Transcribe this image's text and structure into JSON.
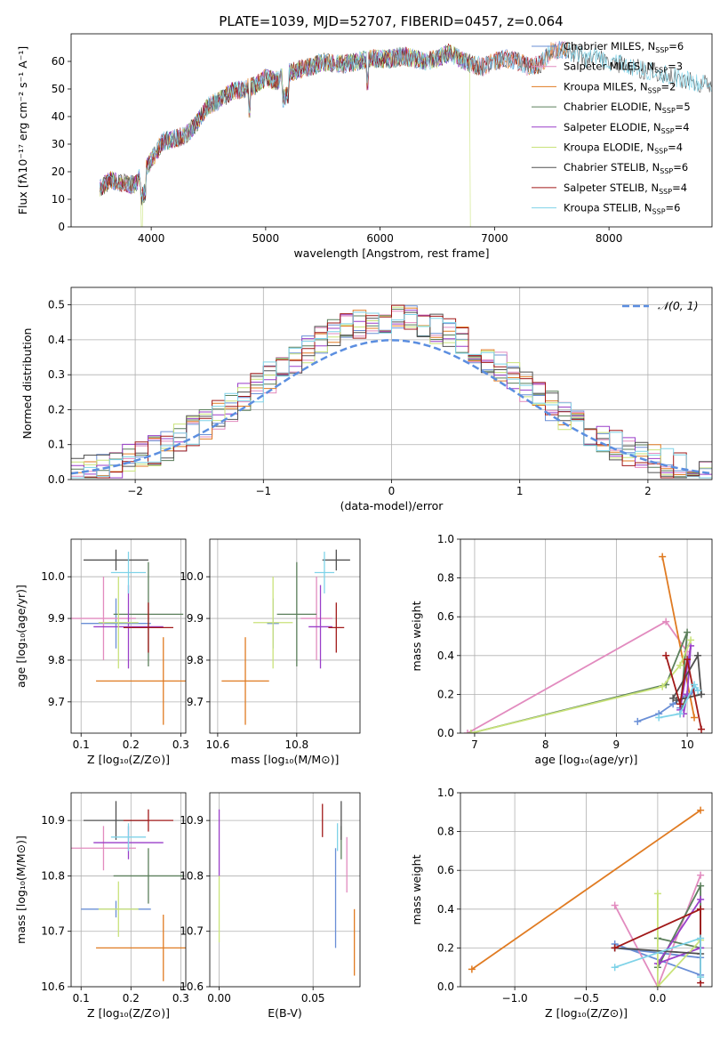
{
  "figure": {
    "title": "PLATE=1039, MJD=52707, FIBERID=0457, z=0.064"
  },
  "colors": {
    "chabrier_miles": "#6a8fd6",
    "salpeter_miles": "#e28bbf",
    "kroupa_miles": "#e07b22",
    "chabrier_elodie": "#5b7f5b",
    "salpeter_elodie": "#9a3fc9",
    "kroupa_elodie": "#c9e37a",
    "chabrier_stelib": "#505050",
    "salpeter_stelib": "#a11919",
    "kroupa_stelib": "#7fd3e8",
    "gauss": "#5b8ee0"
  },
  "chart_data": [
    {
      "id": "spectrum",
      "type": "line",
      "xlabel": "wavelength [Angstrom, rest frame]",
      "ylabel": "Flux [fλ10⁻¹⁷ erg cm⁻² s⁻¹ A⁻¹]",
      "xlim": [
        3300,
        8900
      ],
      "ylim": [
        0,
        70
      ],
      "xticks": [
        "4000",
        "5000",
        "6000",
        "7000",
        "8000"
      ],
      "yticks": [
        "0",
        "10",
        "20",
        "30",
        "40",
        "50",
        "60"
      ],
      "legend": "top-right",
      "continuum": {
        "x": [
          3550,
          3650,
          3750,
          3850,
          3950,
          4000,
          4100,
          4200,
          4300,
          4400,
          4500,
          4600,
          4700,
          4800,
          4900,
          5000,
          5100,
          5200,
          5300,
          5400,
          5500,
          5600,
          5700,
          5800,
          5900,
          6000,
          6100,
          6200,
          6300,
          6400,
          6500,
          6600,
          6700,
          6800,
          6900,
          7000,
          7100,
          7200,
          7300,
          7400,
          7500,
          7600,
          7700,
          7800,
          7900,
          8000,
          8100,
          8200,
          8300,
          8400,
          8500,
          8600,
          8700,
          8800
        ],
        "y": [
          14,
          17,
          16,
          15,
          21,
          24,
          31,
          32,
          33,
          38,
          44,
          46,
          49,
          50,
          51,
          54,
          53,
          56,
          57,
          58,
          60,
          59,
          59,
          60,
          61,
          61,
          61,
          62,
          61,
          60,
          61,
          63,
          61,
          59,
          58,
          60,
          61,
          60,
          58,
          59,
          64,
          64,
          63,
          61,
          62,
          60,
          59,
          58,
          57,
          56,
          55,
          54,
          53,
          52
        ]
      },
      "series": [
        {
          "name": "Chabrier MILES, N_SSP=6",
          "color_key": "chabrier_miles",
          "end": 7640,
          "drop": null
        },
        {
          "name": "Salpeter MILES, N_SSP=3",
          "color_key": "salpeter_miles",
          "end": 7640,
          "drop": null
        },
        {
          "name": "Kroupa MILES, N_SSP=2",
          "color_key": "kroupa_miles",
          "end": 7640,
          "drop": null
        },
        {
          "name": "Chabrier ELODIE, N_SSP=5",
          "color_key": "chabrier_elodie",
          "end": 6800,
          "drop": null
        },
        {
          "name": "Salpeter ELODIE, N_SSP=4",
          "color_key": "salpeter_elodie",
          "end": 6800,
          "drop": null
        },
        {
          "name": "Kroupa ELODIE, N_SSP=4",
          "color_key": "kroupa_elodie",
          "end": 6790,
          "drop": [
            3920,
            6790
          ]
        },
        {
          "name": "Chabrier STELIB, N_SSP=6",
          "color_key": "chabrier_stelib",
          "end": 8900,
          "drop": null
        },
        {
          "name": "Salpeter STELIB, N_SSP=4",
          "color_key": "salpeter_stelib",
          "end": 7420,
          "drop": [
            7420
          ]
        },
        {
          "name": "Kroupa STELIB, N_SSP=6",
          "color_key": "kroupa_stelib",
          "end": 8900,
          "drop": null
        }
      ],
      "legend_entries": [
        {
          "base": "Chabrier MILES, N",
          "sub": "SSP",
          "tail": "=6",
          "color_key": "chabrier_miles"
        },
        {
          "base": "Salpeter MILES, N",
          "sub": "SSP",
          "tail": "=3",
          "color_key": "salpeter_miles"
        },
        {
          "base": "Kroupa MILES, N",
          "sub": "SSP",
          "tail": "=2",
          "color_key": "kroupa_miles"
        },
        {
          "base": "Chabrier ELODIE, N",
          "sub": "SSP",
          "tail": "=5",
          "color_key": "chabrier_elodie"
        },
        {
          "base": "Salpeter ELODIE, N",
          "sub": "SSP",
          "tail": "=4",
          "color_key": "salpeter_elodie"
        },
        {
          "base": "Kroupa ELODIE, N",
          "sub": "SSP",
          "tail": "=4",
          "color_key": "kroupa_elodie"
        },
        {
          "base": "Chabrier STELIB, N",
          "sub": "SSP",
          "tail": "=6",
          "color_key": "chabrier_stelib"
        },
        {
          "base": "Salpeter STELIB, N",
          "sub": "SSP",
          "tail": "=4",
          "color_key": "salpeter_stelib"
        },
        {
          "base": "Kroupa STELIB, N",
          "sub": "SSP",
          "tail": "=6",
          "color_key": "kroupa_stelib"
        }
      ]
    },
    {
      "id": "residuals",
      "type": "line",
      "xlabel": "(data-model)/error",
      "ylabel": "Normed distribution",
      "xlim": [
        -2.5,
        2.5
      ],
      "ylim": [
        0,
        0.55
      ],
      "xticks": [
        "−2",
        "−1",
        "0",
        "1",
        "2"
      ],
      "yticks": [
        "0.0",
        "0.1",
        "0.2",
        "0.3",
        "0.4",
        "0.5"
      ],
      "grid": true,
      "legend": "top-right",
      "gauss_label": "𝒩(0, 1)",
      "bins": 50,
      "series_color_keys": [
        "chabrier_miles",
        "salpeter_miles",
        "kroupa_miles",
        "chabrier_elodie",
        "salpeter_elodie",
        "kroupa_elodie",
        "chabrier_stelib",
        "salpeter_stelib",
        "kroupa_stelib"
      ]
    },
    {
      "id": "age-vs-Z",
      "type": "scatter",
      "xlabel": "Z [log₁₀(Z/Z⊙)]",
      "ylabel": "age  [log₁₀(age/yr)]",
      "xlim": [
        0.08,
        0.31
      ],
      "ylim": [
        9.625,
        10.09
      ],
      "xticks": [
        "0.1",
        "0.2",
        "0.3"
      ],
      "yticks": [
        "9.7",
        "9.8",
        "9.9",
        "10.0"
      ],
      "grid": true,
      "points": [
        {
          "c": "chabrier_miles",
          "x": 0.17,
          "xe": 0.07,
          "y": 9.888,
          "ye": 0.06
        },
        {
          "c": "salpeter_miles",
          "x": 0.145,
          "xe": 0.065,
          "y": 9.9,
          "ye": 0.1
        },
        {
          "c": "kroupa_miles",
          "x": 0.265,
          "xe": 0.135,
          "y": 9.75,
          "ye": 0.105
        },
        {
          "c": "chabrier_elodie",
          "x": 0.235,
          "xe": 0.07,
          "y": 9.91,
          "ye": 0.125
        },
        {
          "c": "salpeter_elodie",
          "x": 0.195,
          "xe": 0.07,
          "y": 9.88,
          "ye": 0.1
        },
        {
          "c": "kroupa_elodie",
          "x": 0.175,
          "xe": 0.04,
          "y": 9.89,
          "ye": 0.11
        },
        {
          "c": "chabrier_stelib",
          "x": 0.17,
          "xe": 0.065,
          "y": 10.04,
          "ye": 0.025
        },
        {
          "c": "salpeter_stelib",
          "x": 0.235,
          "xe": 0.05,
          "y": 9.878,
          "ye": 0.06
        },
        {
          "c": "kroupa_stelib",
          "x": 0.195,
          "xe": 0.035,
          "y": 10.01,
          "ye": 0.05
        }
      ]
    },
    {
      "id": "age-vs-mass",
      "type": "scatter",
      "xlabel": "mass [log₁₀(M/M⊙)]",
      "ylabel": "",
      "xlim": [
        10.58,
        10.96
      ],
      "ylim": [
        9.625,
        10.09
      ],
      "xticks": [
        "10.6",
        "10.8"
      ],
      "yticks": [
        "9.7",
        "9.8",
        "9.9",
        "10.0"
      ],
      "grid": true,
      "points": [
        {
          "c": "chabrier_miles",
          "x": 10.74,
          "xe": 0.015,
          "y": 9.888,
          "ye": 0.06
        },
        {
          "c": "salpeter_miles",
          "x": 10.85,
          "xe": 0.04,
          "y": 9.9,
          "ye": 0.1
        },
        {
          "c": "kroupa_miles",
          "x": 10.67,
          "xe": 0.06,
          "y": 9.75,
          "ye": 0.105
        },
        {
          "c": "chabrier_elodie",
          "x": 10.8,
          "xe": 0.05,
          "y": 9.91,
          "ye": 0.125
        },
        {
          "c": "salpeter_elodie",
          "x": 10.86,
          "xe": 0.03,
          "y": 9.88,
          "ye": 0.1
        },
        {
          "c": "kroupa_elodie",
          "x": 10.74,
          "xe": 0.05,
          "y": 9.89,
          "ye": 0.11
        },
        {
          "c": "chabrier_stelib",
          "x": 10.9,
          "xe": 0.035,
          "y": 10.04,
          "ye": 0.025
        },
        {
          "c": "salpeter_stelib",
          "x": 10.9,
          "xe": 0.02,
          "y": 9.878,
          "ye": 0.06
        },
        {
          "c": "kroupa_stelib",
          "x": 10.87,
          "xe": 0.025,
          "y": 10.01,
          "ye": 0.05
        }
      ]
    },
    {
      "id": "mass-weight-vs-age",
      "type": "line",
      "xlabel": "age  [log₁₀(age/yr)]",
      "ylabel": "mass weight",
      "xlim": [
        6.8,
        10.35
      ],
      "ylim": [
        0,
        1.0
      ],
      "xticks": [
        "7",
        "8",
        "9",
        "10"
      ],
      "yticks": [
        "0.0",
        "0.2",
        "0.4",
        "0.6",
        "0.8",
        "1.0"
      ],
      "grid": true,
      "series": [
        {
          "c": "chabrier_miles",
          "x": [
            9.3,
            9.6,
            9.8,
            10.0,
            10.1,
            9.9
          ],
          "y": [
            0.06,
            0.1,
            0.15,
            0.2,
            0.22,
            0.13
          ]
        },
        {
          "c": "salpeter_miles",
          "x": [
            6.9,
            9.7,
            10.0
          ],
          "y": [
            0.0,
            0.575,
            0.42
          ]
        },
        {
          "c": "kroupa_miles",
          "x": [
            9.65,
            10.1
          ],
          "y": [
            0.91,
            0.08
          ]
        },
        {
          "c": "chabrier_elodie",
          "x": [
            6.95,
            9.7,
            10.0,
            9.9,
            10.0
          ],
          "y": [
            0.0,
            0.25,
            0.52,
            0.1,
            0.2
          ]
        },
        {
          "c": "salpeter_elodie",
          "x": [
            9.9,
            10.05,
            10.0,
            9.95
          ],
          "y": [
            0.12,
            0.45,
            0.2,
            0.1
          ]
        },
        {
          "c": "kroupa_elodie",
          "x": [
            6.95,
            9.65,
            9.9,
            10.05
          ],
          "y": [
            0.0,
            0.24,
            0.35,
            0.48
          ]
        },
        {
          "c": "chabrier_stelib",
          "x": [
            9.8,
            10.15,
            10.2,
            9.85
          ],
          "y": [
            0.18,
            0.4,
            0.2,
            0.17
          ]
        },
        {
          "c": "salpeter_stelib",
          "x": [
            9.7,
            9.9,
            10.0,
            10.2
          ],
          "y": [
            0.4,
            0.15,
            0.38,
            0.02
          ]
        },
        {
          "c": "kroupa_stelib",
          "x": [
            9.6,
            9.9,
            10.1,
            10.15
          ],
          "y": [
            0.08,
            0.1,
            0.25,
            0.22
          ]
        }
      ]
    },
    {
      "id": "mass-vs-Z",
      "type": "scatter",
      "xlabel": "Z [log₁₀(Z/Z⊙)]",
      "ylabel": "mass [log₁₀(M/M⊙)]",
      "xlim": [
        0.08,
        0.31
      ],
      "ylim": [
        10.6,
        10.95
      ],
      "xticks": [
        "0.1",
        "0.2",
        "0.3"
      ],
      "yticks": [
        "10.6",
        "10.7",
        "10.8",
        "10.9"
      ],
      "grid": true,
      "points": [
        {
          "c": "chabrier_miles",
          "x": 0.17,
          "xe": 0.07,
          "y": 10.74,
          "ye": 0.015
        },
        {
          "c": "salpeter_miles",
          "x": 0.145,
          "xe": 0.065,
          "y": 10.85,
          "ye": 0.04
        },
        {
          "c": "kroupa_miles",
          "x": 0.265,
          "xe": 0.135,
          "y": 10.67,
          "ye": 0.06
        },
        {
          "c": "chabrier_elodie",
          "x": 0.235,
          "xe": 0.07,
          "y": 10.8,
          "ye": 0.05
        },
        {
          "c": "salpeter_elodie",
          "x": 0.195,
          "xe": 0.07,
          "y": 10.86,
          "ye": 0.03
        },
        {
          "c": "kroupa_elodie",
          "x": 0.175,
          "xe": 0.04,
          "y": 10.74,
          "ye": 0.05
        },
        {
          "c": "chabrier_stelib",
          "x": 0.17,
          "xe": 0.065,
          "y": 10.9,
          "ye": 0.035
        },
        {
          "c": "salpeter_stelib",
          "x": 0.235,
          "xe": 0.05,
          "y": 10.9,
          "ye": 0.02
        },
        {
          "c": "kroupa_stelib",
          "x": 0.195,
          "xe": 0.035,
          "y": 10.87,
          "ye": 0.025
        }
      ]
    },
    {
      "id": "mass-vs-EBV",
      "type": "scatter",
      "xlabel": "E(B-V)",
      "ylabel": "",
      "xlim": [
        -0.005,
        0.075
      ],
      "ylim": [
        10.6,
        10.95
      ],
      "xticks": [
        "0.00",
        "0.05"
      ],
      "yticks": [
        "10.6",
        "10.7",
        "10.8",
        "10.9"
      ],
      "grid": true,
      "points": [
        {
          "c": "chabrier_miles",
          "x": 0.062,
          "xe": 0,
          "y": 10.76,
          "ye": 0.09
        },
        {
          "c": "salpeter_miles",
          "x": 0.068,
          "xe": 0,
          "y": 10.82,
          "ye": 0.05
        },
        {
          "c": "kroupa_miles",
          "x": 0.072,
          "xe": 0,
          "y": 10.68,
          "ye": 0.06
        },
        {
          "c": "chabrier_elodie",
          "x": 0.065,
          "xe": 0,
          "y": 10.86,
          "ye": 0.03
        },
        {
          "c": "salpeter_elodie",
          "x": 0.0,
          "xe": 0,
          "y": 10.86,
          "ye": 0.06
        },
        {
          "c": "kroupa_elodie",
          "x": 0.0,
          "xe": 0,
          "y": 10.74,
          "ye": 0.06
        },
        {
          "c": "chabrier_stelib",
          "x": 0.065,
          "xe": 0,
          "y": 10.9,
          "ye": 0.035
        },
        {
          "c": "salpeter_stelib",
          "x": 0.055,
          "xe": 0,
          "y": 10.9,
          "ye": 0.03
        },
        {
          "c": "kroupa_stelib",
          "x": 0.063,
          "xe": 0,
          "y": 10.87,
          "ye": 0.025
        }
      ]
    },
    {
      "id": "mass-weight-vs-Z",
      "type": "line",
      "xlabel": "Z [log₁₀(Z/Z⊙)]",
      "ylabel": "mass weight",
      "xlim": [
        -1.38,
        0.38
      ],
      "ylim": [
        0,
        1.0
      ],
      "xticks": [
        "−1.0",
        "−0.5",
        "0.0"
      ],
      "yticks": [
        "0.0",
        "0.2",
        "0.4",
        "0.6",
        "0.8",
        "1.0"
      ],
      "grid": true,
      "series": [
        {
          "c": "chabrier_miles",
          "x": [
            -0.3,
            0.3,
            0.3,
            -0.3
          ],
          "y": [
            0.22,
            0.06,
            0.15,
            0.2
          ]
        },
        {
          "c": "salpeter_miles",
          "x": [
            -0.3,
            0.0,
            0.3
          ],
          "y": [
            0.42,
            0.0,
            0.575
          ]
        },
        {
          "c": "kroupa_miles",
          "x": [
            -1.3,
            0.3
          ],
          "y": [
            0.09,
            0.91
          ]
        },
        {
          "c": "chabrier_elodie",
          "x": [
            0.0,
            0.3,
            0.3,
            0.0
          ],
          "y": [
            0.1,
            0.52,
            0.2,
            0.25
          ]
        },
        {
          "c": "salpeter_elodie",
          "x": [
            0.3,
            0.0,
            0.3
          ],
          "y": [
            0.45,
            0.12,
            0.2
          ]
        },
        {
          "c": "kroupa_elodie",
          "x": [
            0.0,
            0.0,
            0.3
          ],
          "y": [
            0.48,
            0.0,
            0.24
          ]
        },
        {
          "c": "chabrier_stelib",
          "x": [
            -0.3,
            0.3,
            0.3
          ],
          "y": [
            0.2,
            0.17,
            0.4
          ]
        },
        {
          "c": "salpeter_stelib",
          "x": [
            -0.3,
            0.3,
            0.3
          ],
          "y": [
            0.2,
            0.4,
            0.02
          ]
        },
        {
          "c": "kroupa_stelib",
          "x": [
            -0.3,
            0.3,
            0.3
          ],
          "y": [
            0.1,
            0.25,
            0.05
          ]
        }
      ]
    }
  ]
}
